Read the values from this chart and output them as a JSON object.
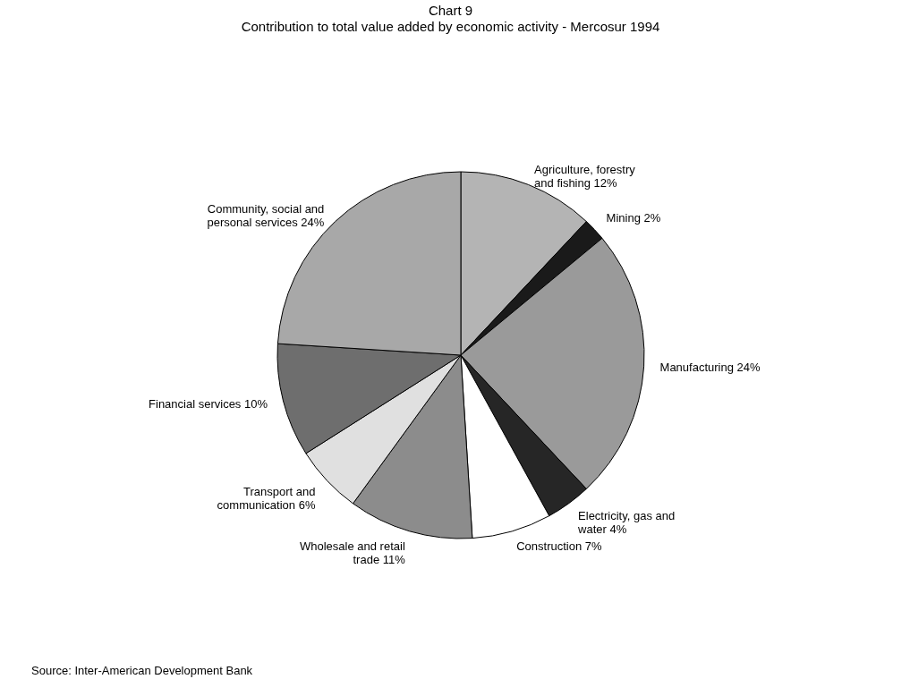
{
  "chart_data": {
    "type": "pie",
    "title": "Chart 9",
    "subtitle": "Contribution to total value added by economic activity - Mercosur 1994",
    "categories": [
      "Agriculture, forestry and fishing",
      "Mining",
      "Manufacturing",
      "Electricity, gas and water",
      "Construction",
      "Wholesale and retail trade",
      "Transport and communication",
      "Financial services",
      "Community, social and personal services"
    ],
    "values": [
      12,
      2,
      24,
      4,
      7,
      11,
      6,
      10,
      24
    ],
    "colors": [
      "#b4b4b4",
      "#1a1a1a",
      "#9a9a9a",
      "#262626",
      "#ffffff",
      "#8c8c8c",
      "#e0e0e0",
      "#6e6e6e",
      "#a8a8a8"
    ],
    "value_labels": [
      "12%",
      "2%",
      "24%",
      "4%",
      "7%",
      "11%",
      "6%",
      "10%",
      "24%"
    ],
    "annotations": [
      "Source: Inter-American Development Bank"
    ]
  }
}
